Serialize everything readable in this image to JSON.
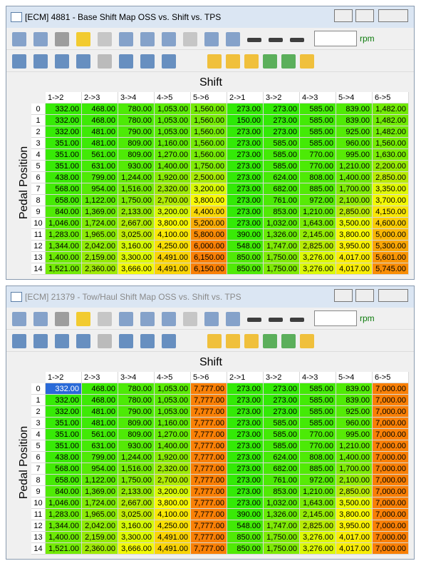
{
  "windows": [
    {
      "title": "[ECM] 4881 - Base Shift Map OSS vs. Shift vs. TPS",
      "unit": "rpm",
      "column_axis_title": "Shift",
      "row_axis_title": "Pedal Position",
      "columns": [
        "1->2",
        "2->3",
        "3->4",
        "4->5",
        "5->6",
        "2->1",
        "3->2",
        "4->3",
        "5->4",
        "6->5"
      ],
      "row_labels": [
        0,
        1,
        2,
        3,
        4,
        5,
        6,
        7,
        8,
        9,
        10,
        11,
        12,
        13,
        14
      ],
      "rows": [
        [
          "332.00",
          "468.00",
          "780.00",
          "1,053.00",
          "1,560.00",
          "273.00",
          "273.00",
          "585.00",
          "839.00",
          "1,482.00"
        ],
        [
          "332.00",
          "468.00",
          "780.00",
          "1,053.00",
          "1,560.00",
          "150.00",
          "273.00",
          "585.00",
          "839.00",
          "1,482.00"
        ],
        [
          "332.00",
          "481.00",
          "790.00",
          "1,053.00",
          "1,560.00",
          "273.00",
          "273.00",
          "585.00",
          "925.00",
          "1,482.00"
        ],
        [
          "351.00",
          "481.00",
          "809.00",
          "1,160.00",
          "1,560.00",
          "273.00",
          "585.00",
          "585.00",
          "960.00",
          "1,560.00"
        ],
        [
          "351.00",
          "561.00",
          "809.00",
          "1,270.00",
          "1,560.00",
          "273.00",
          "585.00",
          "770.00",
          "995.00",
          "1,630.00"
        ],
        [
          "351.00",
          "631.00",
          "930.00",
          "1,400.00",
          "1,750.00",
          "273.00",
          "585.00",
          "770.00",
          "1,210.00",
          "2,200.00"
        ],
        [
          "438.00",
          "799.00",
          "1,244.00",
          "1,920.00",
          "2,500.00",
          "273.00",
          "624.00",
          "808.00",
          "1,400.00",
          "2,850.00"
        ],
        [
          "568.00",
          "954.00",
          "1,516.00",
          "2,320.00",
          "3,200.00",
          "273.00",
          "682.00",
          "885.00",
          "1,700.00",
          "3,350.00"
        ],
        [
          "658.00",
          "1,122.00",
          "1,750.00",
          "2,700.00",
          "3,800.00",
          "273.00",
          "761.00",
          "972.00",
          "2,100.00",
          "3,700.00"
        ],
        [
          "840.00",
          "1,369.00",
          "2,133.00",
          "3,200.00",
          "4,400.00",
          "273.00",
          "853.00",
          "1,210.00",
          "2,850.00",
          "4,150.00"
        ],
        [
          "1,046.00",
          "1,724.00",
          "2,667.00",
          "3,800.00",
          "5,200.00",
          "273.00",
          "1,032.00",
          "1,643.00",
          "3,500.00",
          "4,600.00"
        ],
        [
          "1,283.00",
          "1,965.00",
          "3,025.00",
          "4,100.00",
          "5,800.00",
          "390.00",
          "1,326.00",
          "2,145.00",
          "3,800.00",
          "5,000.00"
        ],
        [
          "1,344.00",
          "2,042.00",
          "3,160.00",
          "4,250.00",
          "6,000.00",
          "548.00",
          "1,747.00",
          "2,825.00",
          "3,950.00",
          "5,300.00"
        ],
        [
          "1,400.00",
          "2,159.00",
          "3,300.00",
          "4,491.00",
          "6,150.00",
          "850.00",
          "1,750.00",
          "3,276.00",
          "4,017.00",
          "5,601.00"
        ],
        [
          "1,521.00",
          "2,360.00",
          "3,666.00",
          "4,491.00",
          "6,150.00",
          "850.00",
          "1,750.00",
          "3,276.00",
          "4,017.00",
          "5,745.00"
        ]
      ]
    },
    {
      "title": "[ECM] 21379 - Tow/Haul Shift Map OSS vs. Shift vs. TPS",
      "unit": "rpm",
      "column_axis_title": "Shift",
      "row_axis_title": "Pedal Position",
      "columns": [
        "1->2",
        "2->3",
        "3->4",
        "4->5",
        "5->6",
        "2->1",
        "3->2",
        "4->3",
        "5->4",
        "6->5"
      ],
      "row_labels": [
        0,
        1,
        2,
        3,
        4,
        5,
        6,
        7,
        8,
        9,
        10,
        11,
        12,
        13,
        14
      ],
      "rows": [
        [
          "332.00",
          "468.00",
          "780.00",
          "1,053.00",
          "7,777.00",
          "273.00",
          "273.00",
          "585.00",
          "839.00",
          "7,000.00"
        ],
        [
          "332.00",
          "468.00",
          "780.00",
          "1,053.00",
          "7,777.00",
          "273.00",
          "273.00",
          "585.00",
          "839.00",
          "7,000.00"
        ],
        [
          "332.00",
          "481.00",
          "790.00",
          "1,053.00",
          "7,777.00",
          "273.00",
          "273.00",
          "585.00",
          "925.00",
          "7,000.00"
        ],
        [
          "351.00",
          "481.00",
          "809.00",
          "1,160.00",
          "7,777.00",
          "273.00",
          "585.00",
          "585.00",
          "960.00",
          "7,000.00"
        ],
        [
          "351.00",
          "561.00",
          "809.00",
          "1,270.00",
          "7,777.00",
          "273.00",
          "585.00",
          "770.00",
          "995.00",
          "7,000.00"
        ],
        [
          "351.00",
          "631.00",
          "930.00",
          "1,400.00",
          "7,777.00",
          "273.00",
          "585.00",
          "770.00",
          "1,210.00",
          "7,000.00"
        ],
        [
          "438.00",
          "799.00",
          "1,244.00",
          "1,920.00",
          "7,777.00",
          "273.00",
          "624.00",
          "808.00",
          "1,400.00",
          "7,000.00"
        ],
        [
          "568.00",
          "954.00",
          "1,516.00",
          "2,320.00",
          "7,777.00",
          "273.00",
          "682.00",
          "885.00",
          "1,700.00",
          "7,000.00"
        ],
        [
          "658.00",
          "1,122.00",
          "1,750.00",
          "2,700.00",
          "7,777.00",
          "273.00",
          "761.00",
          "972.00",
          "2,100.00",
          "7,000.00"
        ],
        [
          "840.00",
          "1,369.00",
          "2,133.00",
          "3,200.00",
          "7,777.00",
          "273.00",
          "853.00",
          "1,210.00",
          "2,850.00",
          "7,000.00"
        ],
        [
          "1,046.00",
          "1,724.00",
          "2,667.00",
          "3,800.00",
          "7,777.00",
          "273.00",
          "1,032.00",
          "1,643.00",
          "3,500.00",
          "7,000.00"
        ],
        [
          "1,283.00",
          "1,965.00",
          "3,025.00",
          "4,100.00",
          "7,777.00",
          "390.00",
          "1,326.00",
          "2,145.00",
          "3,800.00",
          "7,000.00"
        ],
        [
          "1,344.00",
          "2,042.00",
          "3,160.00",
          "4,250.00",
          "7,777.00",
          "548.00",
          "1,747.00",
          "2,825.00",
          "3,950.00",
          "7,000.00"
        ],
        [
          "1,400.00",
          "2,159.00",
          "3,300.00",
          "4,491.00",
          "7,777.00",
          "850.00",
          "1,750.00",
          "3,276.00",
          "4,017.00",
          "7,000.00"
        ],
        [
          "1,521.00",
          "2,360.00",
          "3,666.00",
          "4,491.00",
          "7,777.00",
          "850.00",
          "1,750.00",
          "3,276.00",
          "4,017.00",
          "7,000.00"
        ]
      ]
    }
  ]
}
